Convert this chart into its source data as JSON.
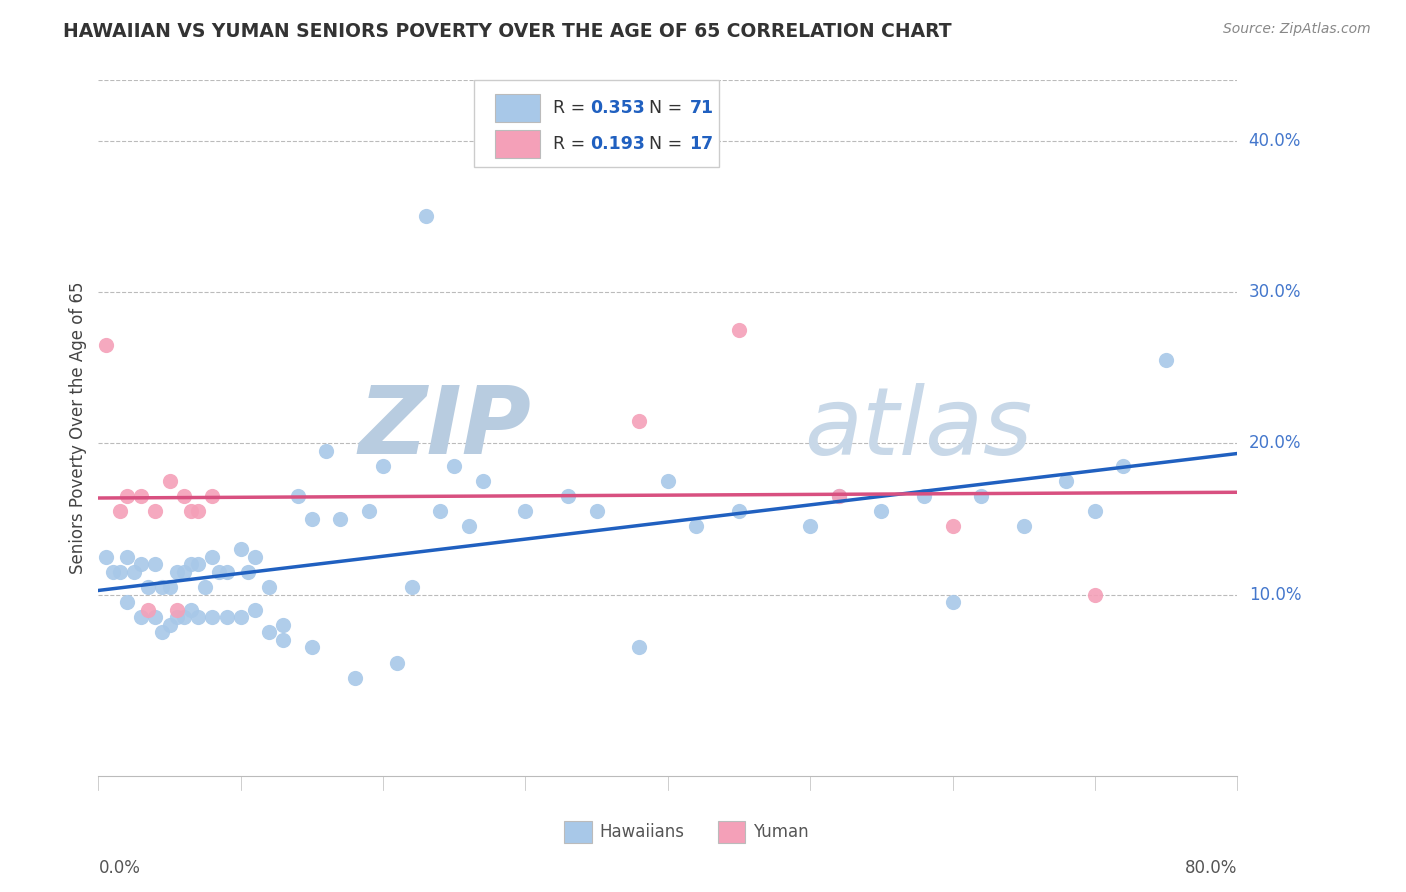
{
  "title": "HAWAIIAN VS YUMAN SENIORS POVERTY OVER THE AGE OF 65 CORRELATION CHART",
  "source": "Source: ZipAtlas.com",
  "ylabel": "Seniors Poverty Over the Age of 65",
  "yticks": [
    "10.0%",
    "20.0%",
    "30.0%",
    "40.0%"
  ],
  "ytick_vals": [
    0.1,
    0.2,
    0.3,
    0.4
  ],
  "xmin": 0.0,
  "xmax": 0.8,
  "ymin": -0.02,
  "ymax": 0.44,
  "hawaiian_R": "0.353",
  "hawaiian_N": "71",
  "yuman_R": "0.193",
  "yuman_N": "17",
  "hawaiian_color": "#A8C8E8",
  "yuman_color": "#F4A0B8",
  "hawaiian_line_color": "#2060C0",
  "yuman_line_color": "#D85080",
  "watermark_zip": "ZIP",
  "watermark_atlas": "atlas",
  "watermark_color": "#D0DFF0",
  "hawaiian_x": [
    0.005,
    0.01,
    0.015,
    0.02,
    0.02,
    0.025,
    0.03,
    0.03,
    0.035,
    0.04,
    0.04,
    0.045,
    0.045,
    0.05,
    0.05,
    0.055,
    0.055,
    0.06,
    0.06,
    0.065,
    0.065,
    0.07,
    0.07,
    0.075,
    0.08,
    0.08,
    0.085,
    0.09,
    0.09,
    0.1,
    0.1,
    0.105,
    0.11,
    0.11,
    0.12,
    0.12,
    0.13,
    0.13,
    0.14,
    0.15,
    0.15,
    0.16,
    0.17,
    0.18,
    0.19,
    0.2,
    0.21,
    0.22,
    0.23,
    0.24,
    0.25,
    0.26,
    0.27,
    0.3,
    0.33,
    0.35,
    0.38,
    0.4,
    0.42,
    0.45,
    0.5,
    0.52,
    0.55,
    0.58,
    0.6,
    0.62,
    0.65,
    0.68,
    0.7,
    0.72,
    0.75
  ],
  "hawaiian_y": [
    0.125,
    0.115,
    0.115,
    0.125,
    0.095,
    0.115,
    0.12,
    0.085,
    0.105,
    0.12,
    0.085,
    0.105,
    0.075,
    0.105,
    0.08,
    0.115,
    0.085,
    0.115,
    0.085,
    0.12,
    0.09,
    0.12,
    0.085,
    0.105,
    0.125,
    0.085,
    0.115,
    0.115,
    0.085,
    0.13,
    0.085,
    0.115,
    0.125,
    0.09,
    0.105,
    0.075,
    0.07,
    0.08,
    0.165,
    0.15,
    0.065,
    0.195,
    0.15,
    0.045,
    0.155,
    0.185,
    0.055,
    0.105,
    0.35,
    0.155,
    0.185,
    0.145,
    0.175,
    0.155,
    0.165,
    0.155,
    0.065,
    0.175,
    0.145,
    0.155,
    0.145,
    0.165,
    0.155,
    0.165,
    0.095,
    0.165,
    0.145,
    0.175,
    0.155,
    0.185,
    0.255
  ],
  "yuman_x": [
    0.005,
    0.015,
    0.02,
    0.03,
    0.035,
    0.04,
    0.05,
    0.055,
    0.06,
    0.065,
    0.07,
    0.08,
    0.38,
    0.45,
    0.52,
    0.6,
    0.7
  ],
  "yuman_y": [
    0.265,
    0.155,
    0.165,
    0.165,
    0.09,
    0.155,
    0.175,
    0.09,
    0.165,
    0.155,
    0.155,
    0.165,
    0.215,
    0.275,
    0.165,
    0.145,
    0.1
  ]
}
